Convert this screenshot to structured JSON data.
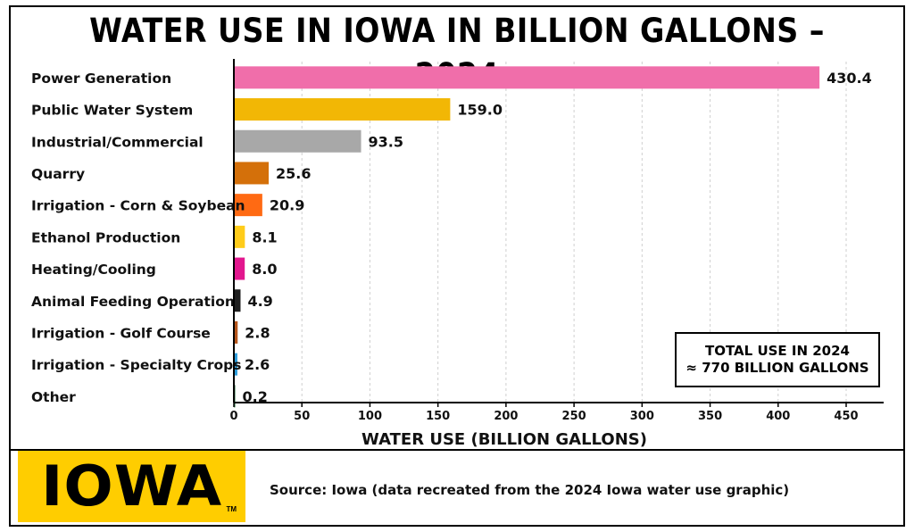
{
  "title": "WATER USE IN IOWA IN BILLION GALLONS – 2024",
  "total_box": {
    "line1": "TOTAL USE IN 2024",
    "line2": "≈ 770 BILLION GALLONS"
  },
  "logo": {
    "text": "IOWA",
    "tm": "TM",
    "color": "#FFCD00"
  },
  "source": "Source: Iowa (data recreated from the 2024 Iowa water use graphic)",
  "chart_data": {
    "type": "bar",
    "orientation": "horizontal",
    "categories": [
      "Power Generation",
      "Public Water System",
      "Industrial/Commercial",
      "Quarry",
      "Irrigation - Corn & Soybean",
      "Ethanol Production",
      "Heating/Cooling",
      "Animal Feeding Operation",
      "Irrigation - Golf Course",
      "Irrigation - Specialty Crops",
      "Other"
    ],
    "values": [
      430.4,
      159.0,
      93.5,
      25.6,
      20.9,
      8.1,
      8.0,
      4.9,
      2.8,
      2.6,
      0.2
    ],
    "value_labels": [
      "430.4",
      "159.0",
      "93.5",
      "25.6",
      "20.9",
      "8.1",
      "8.0",
      "4.9",
      "2.8",
      "2.6",
      "0.2"
    ],
    "colors": [
      "#F06EAA",
      "#F2B705",
      "#A8A8A8",
      "#D4700A",
      "#FF6A13",
      "#FFCC1A",
      "#E2178E",
      "#1E1E1E",
      "#B5551B",
      "#2D9CDB",
      "#1E6B35"
    ],
    "xlabel": "WATER USE (BILLION GALLONS)",
    "ylabel": "",
    "xlim": [
      0,
      450
    ],
    "xticks": [
      0,
      50,
      100,
      150,
      200,
      250,
      300,
      350,
      400,
      450
    ],
    "grid": "vertical dashed"
  }
}
